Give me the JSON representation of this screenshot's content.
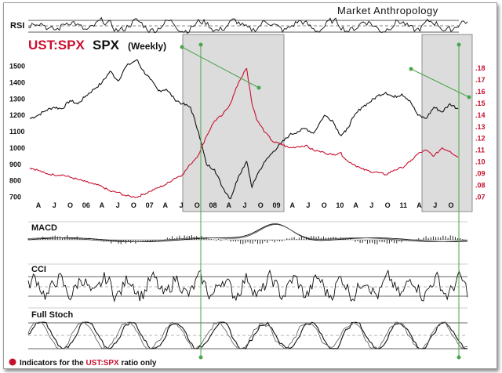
{
  "brand": "Market Anthropology",
  "panels": {
    "rsi": "RSI",
    "macd": "MACD",
    "cci": "CCI",
    "stoch": "Full Stoch"
  },
  "title": {
    "ratio": "UST:SPX",
    "index": "SPX",
    "period": "(Weekly)"
  },
  "footnote": {
    "pre": "Indicators for the ",
    "ratio": "UST:SPX",
    "post": " ratio only"
  },
  "colors": {
    "spx": "#111111",
    "ratio": "#c8102e",
    "highlight": "#c9c9c9",
    "marker": "#4aa64a"
  },
  "chart_data": {
    "type": "line",
    "title": "UST:SPX SPX (Weekly)",
    "x_labels": [
      "A",
      "J",
      "O",
      "06",
      "A",
      "J",
      "O",
      "07",
      "A",
      "J",
      "O",
      "08",
      "A",
      "J",
      "O",
      "09",
      "A",
      "J",
      "O",
      "10",
      "A",
      "J",
      "O",
      "11",
      "A",
      "J",
      "O"
    ],
    "x_range": [
      "2005-04",
      "2011-12"
    ],
    "y_left_ticks": [
      700,
      800,
      900,
      1000,
      1100,
      1200,
      1300,
      1400,
      1500
    ],
    "y_left_range": [
      650,
      1560
    ],
    "y_right_ticks": [
      0.07,
      0.08,
      0.09,
      0.1,
      0.11,
      0.12,
      0.13,
      0.14,
      0.15,
      0.16,
      0.17,
      0.18
    ],
    "y_right_range": [
      0.063,
      0.19
    ],
    "series": [
      {
        "name": "SPX",
        "axis": "left",
        "color": "#111111",
        "t": [
          0,
          3,
          6,
          9,
          12,
          15,
          18,
          21,
          24,
          27,
          30,
          33,
          36,
          40,
          42,
          45,
          48,
          51,
          54,
          57,
          60,
          63,
          66,
          69,
          72,
          75,
          78,
          81
        ],
        "values": [
          1180,
          1200,
          1230,
          1250,
          1240,
          1290,
          1270,
          1320,
          1360,
          1400,
          1470,
          1410,
          1500,
          1540,
          1480,
          1420,
          1350,
          1360,
          1300,
          1270,
          1250,
          1100,
          900,
          870,
          760,
          690,
          830,
          920
        ]
      },
      {
        "name": "UST:SPX",
        "axis": "right",
        "color": "#c8102e",
        "t": [
          0,
          3,
          6,
          9,
          12,
          15,
          18,
          21,
          24,
          27,
          30,
          33,
          36,
          40,
          42,
          45,
          48,
          51,
          54,
          57,
          60,
          63,
          66,
          69,
          72,
          75,
          78,
          81
        ],
        "values": [
          0.095,
          0.093,
          0.09,
          0.089,
          0.089,
          0.087,
          0.085,
          0.083,
          0.081,
          0.079,
          0.075,
          0.074,
          0.071,
          0.07,
          0.072,
          0.075,
          0.078,
          0.081,
          0.086,
          0.089,
          0.098,
          0.106,
          0.122,
          0.135,
          0.14,
          0.15,
          0.168,
          0.18
        ]
      },
      {
        "name": "SPX (cont.)",
        "axis": "left",
        "color": "#111111",
        "t": [
          81,
          83,
          85,
          88,
          91,
          94,
          97,
          100,
          103,
          106,
          110,
          113,
          116,
          118,
          121,
          124,
          127,
          130,
          133,
          136,
          139,
          142,
          145,
          148,
          151,
          154,
          157,
          160
        ],
        "values": [
          920,
          760,
          840,
          920,
          980,
          1030,
          1080,
          1100,
          1120,
          1090,
          1200,
          1170,
          1080,
          1100,
          1190,
          1250,
          1280,
          1320,
          1340,
          1310,
          1330,
          1290,
          1200,
          1180,
          1250,
          1220,
          1270,
          1240
        ]
      },
      {
        "name": "UST:SPX (cont.)",
        "axis": "right",
        "color": "#c8102e",
        "t": [
          81,
          83,
          85,
          88,
          91,
          94,
          97,
          100,
          103,
          106,
          110,
          113,
          116,
          118,
          121,
          124,
          127,
          130,
          133,
          136,
          139,
          142,
          145,
          148,
          151,
          154,
          157,
          160
        ],
        "values": [
          0.18,
          0.15,
          0.135,
          0.125,
          0.117,
          0.115,
          0.112,
          0.113,
          0.114,
          0.11,
          0.108,
          0.106,
          0.108,
          0.102,
          0.098,
          0.094,
          0.092,
          0.091,
          0.089,
          0.093,
          0.095,
          0.1,
          0.107,
          0.11,
          0.105,
          0.112,
          0.109,
          0.104
        ]
      }
    ],
    "highlight_ranges": [
      [
        40,
        81
      ],
      [
        142,
        160
      ]
    ]
  }
}
